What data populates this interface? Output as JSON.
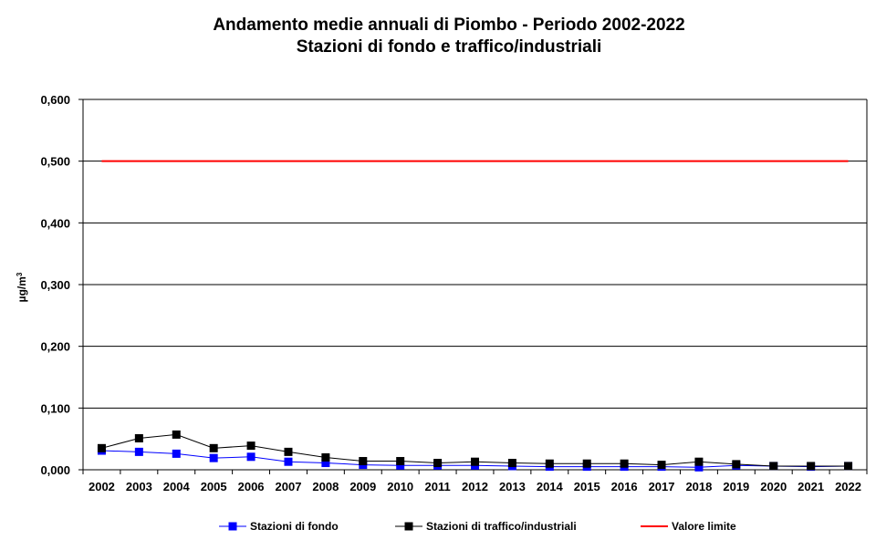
{
  "chart_data": {
    "type": "line",
    "title": "Andamento medie annuali di Piombo - Periodo 2002-2022",
    "subtitle": "Stazioni di fondo e traffico/industriali",
    "ylabel_base": "µg/m",
    "ylabel_sup": "3",
    "ylim": [
      0,
      0.6
    ],
    "yticks": [
      "0,000",
      "0,100",
      "0,200",
      "0,300",
      "0,400",
      "0,500",
      "0,600"
    ],
    "ytick_values": [
      0,
      0.1,
      0.2,
      0.3,
      0.4,
      0.5,
      0.6
    ],
    "grid": true,
    "legend_position": "bottom",
    "categories": [
      "2002",
      "2003",
      "2004",
      "2005",
      "2006",
      "2007",
      "2008",
      "2009",
      "2010",
      "2011",
      "2012",
      "2013",
      "2014",
      "2015",
      "2016",
      "2017",
      "2018",
      "2019",
      "2020",
      "2021",
      "2022"
    ],
    "series": [
      {
        "name": "Stazioni di fondo",
        "color": "#0000ff",
        "marker": "square",
        "values": [
          0.031,
          0.029,
          0.026,
          0.019,
          0.021,
          0.013,
          0.011,
          0.008,
          0.007,
          0.007,
          0.007,
          0.006,
          0.005,
          0.005,
          0.005,
          0.005,
          0.004,
          0.007,
          0.006,
          0.005,
          0.006
        ]
      },
      {
        "name": "Stazioni di traffico/industriali",
        "color": "#000000",
        "marker": "square",
        "values": [
          0.035,
          0.051,
          0.057,
          0.035,
          0.039,
          0.029,
          0.02,
          0.014,
          0.014,
          0.011,
          0.013,
          0.011,
          0.01,
          0.01,
          0.01,
          0.008,
          0.013,
          0.009,
          0.006,
          0.006,
          0.006
        ]
      },
      {
        "name": "Valore limite",
        "color": "#ff0000",
        "marker": "none",
        "values": [
          0.5,
          0.5,
          0.5,
          0.5,
          0.5,
          0.5,
          0.5,
          0.5,
          0.5,
          0.5,
          0.5,
          0.5,
          0.5,
          0.5,
          0.5,
          0.5,
          0.5,
          0.5,
          0.5,
          0.5,
          0.5
        ]
      }
    ]
  }
}
